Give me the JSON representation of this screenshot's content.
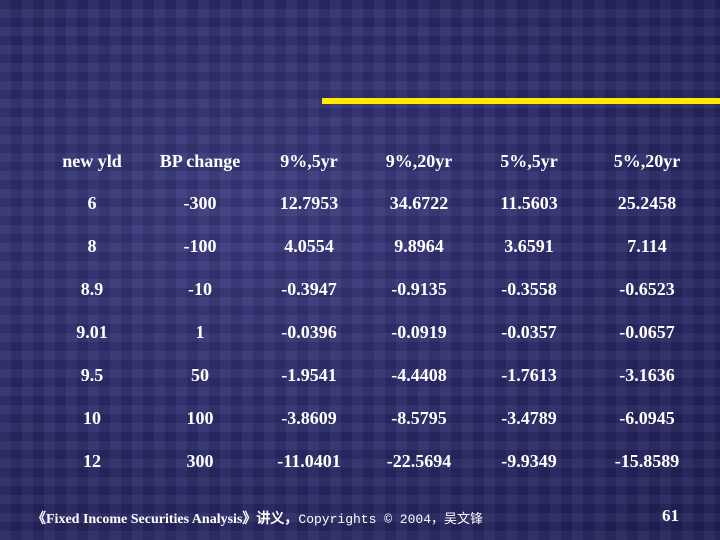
{
  "table": {
    "headers": [
      "new yld",
      "BP change",
      "9%,5yr",
      "9%,20yr",
      "5%,5yr",
      "5%,20yr"
    ],
    "rows": [
      [
        "6",
        "-300",
        "12.7953",
        "34.6722",
        "11.5603",
        "25.2458"
      ],
      [
        "8",
        "-100",
        "4.0554",
        "9.8964",
        "3.6591",
        "7.114"
      ],
      [
        "8.9",
        "-10",
        "-0.3947",
        "-0.9135",
        "-0.3558",
        "-0.6523"
      ],
      [
        "9.01",
        "1",
        "-0.0396",
        "-0.0919",
        "-0.0357",
        "-0.0657"
      ],
      [
        "9.5",
        "50",
        "-1.9541",
        "-4.4408",
        "-1.7613",
        "-3.1636"
      ],
      [
        "10",
        "100",
        "-3.8609",
        "-8.5795",
        "-3.4789",
        "-6.0945"
      ],
      [
        "12",
        "300",
        "-11.0401",
        "-22.5694",
        "-9.9349",
        "-15.8589"
      ]
    ]
  },
  "footer": {
    "course": "《Fixed Income Securities Analysis》讲义，",
    "copyright": "Copyrights © 2004，吴文锋"
  },
  "page_number": "61",
  "colors": {
    "accent_line": "#ffea00",
    "background": "#2a2a6a",
    "text": "#ffffff"
  }
}
